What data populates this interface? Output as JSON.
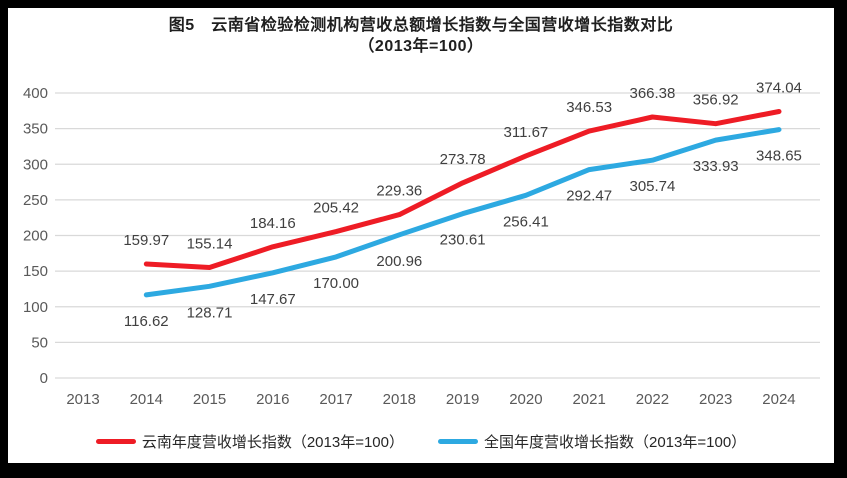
{
  "title": {
    "line1": "图5　云南省检验检测机构营收总额增长指数与全国营收增长指数对比",
    "line2": "（2013年=100）"
  },
  "colors": {
    "grid": "#d9d9d9",
    "axis_text": "#595959",
    "data_label": "#404040",
    "frame": "#000000",
    "background": "#ffffff"
  },
  "chart_data": {
    "type": "line",
    "title": "图5 云南省检验检测机构营收总额增长指数与全国营收增长指数对比（2013年=100）",
    "x_years": [
      "2013",
      "2014",
      "2015",
      "2016",
      "2017",
      "2018",
      "2019",
      "2020",
      "2021",
      "2022",
      "2023",
      "2024"
    ],
    "y_ticks": [
      0,
      50,
      100,
      150,
      200,
      250,
      300,
      350,
      400
    ],
    "ylim": [
      0,
      400
    ],
    "grid": true,
    "legend_position": "bottom",
    "series": [
      {
        "name": "云南年度营收增长指数（2013年=100）",
        "color": "#ee1c25",
        "start_year": "2014",
        "values": [
          159.97,
          155.14,
          184.16,
          205.42,
          229.36,
          273.78,
          311.67,
          346.53,
          366.38,
          356.92,
          374.04
        ],
        "labels": [
          "159.97",
          "155.14",
          "184.16",
          "205.42",
          "229.36",
          "273.78",
          "311.67",
          "346.53",
          "366.38",
          "356.92",
          "374.04"
        ],
        "label_position": "above"
      },
      {
        "name": "全国年度营收增长指数（2013年=100）",
        "color": "#2da9e1",
        "start_year": "2014",
        "values": [
          116.62,
          128.71,
          147.67,
          170.0,
          200.96,
          230.61,
          256.41,
          292.47,
          305.74,
          333.93,
          348.65
        ],
        "labels": [
          "116.62",
          "128.71",
          "147.67",
          "170.00",
          "200.96",
          "230.61",
          "256.41",
          "292.47",
          "305.74",
          "333.93",
          "348.65"
        ],
        "label_position": "below"
      }
    ]
  }
}
